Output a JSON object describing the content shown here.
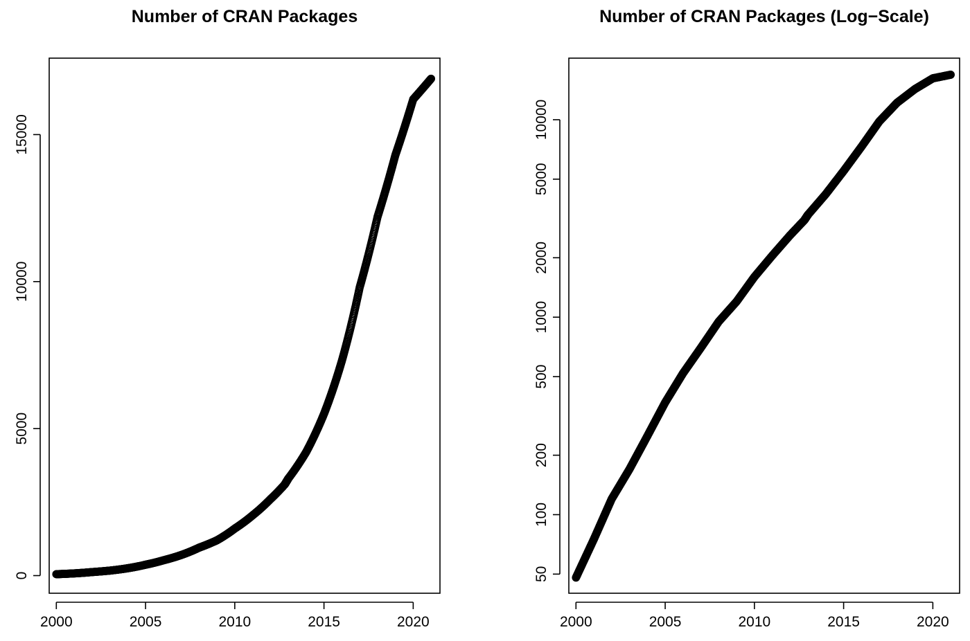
{
  "chart_data": [
    {
      "type": "scatter",
      "title": "Number of CRAN Packages",
      "xlabel": "",
      "ylabel": "",
      "log_y": false,
      "xlim": [
        1999.6,
        2021.5
      ],
      "ylim": [
        -600,
        17600
      ],
      "x_ticks": [
        2000,
        2005,
        2010,
        2015,
        2020
      ],
      "x_tick_labels": [
        "2000",
        "2005",
        "2010",
        "2015",
        "2020"
      ],
      "y_ticks": [
        0,
        5000,
        10000,
        15000
      ],
      "y_tick_labels": [
        "0",
        "5000",
        "10000",
        "15000"
      ],
      "marker": "open-circle",
      "series": [
        {
          "x": [
            2000.0,
            2001.0,
            2002.0,
            2003.0,
            2004.0,
            2005.0,
            2006.0,
            2007.0,
            2008.0,
            2009.0,
            2010.0,
            2011.0,
            2012.0,
            2012.8,
            2013.0,
            2014.0,
            2015.0,
            2016.0,
            2017.0,
            2018.0,
            2019.0,
            2020.0,
            2021.0
          ],
          "y": [
            48,
            75,
            120,
            170,
            250,
            370,
            520,
            700,
            950,
            1200,
            1600,
            2050,
            2600,
            3100,
            3300,
            4200,
            5500,
            7300,
            9800,
            12200,
            14300,
            16200,
            16900
          ]
        }
      ]
    },
    {
      "type": "scatter",
      "title": "Number of CRAN Packages (Log−Scale)",
      "xlabel": "",
      "ylabel": "",
      "log_y": true,
      "xlim": [
        1999.6,
        2021.5
      ],
      "ylim": [
        40,
        20500
      ],
      "x_ticks": [
        2000,
        2005,
        2010,
        2015,
        2020
      ],
      "x_tick_labels": [
        "2000",
        "2005",
        "2010",
        "2015",
        "2020"
      ],
      "y_ticks": [
        50,
        100,
        200,
        500,
        1000,
        2000,
        5000,
        10000
      ],
      "y_tick_labels": [
        "50",
        "100",
        "200",
        "500",
        "1000",
        "2000",
        "5000",
        "10000"
      ],
      "marker": "open-circle",
      "series": [
        {
          "x": [
            2000.0,
            2001.0,
            2002.0,
            2003.0,
            2004.0,
            2005.0,
            2006.0,
            2007.0,
            2008.0,
            2009.0,
            2010.0,
            2011.0,
            2012.0,
            2012.8,
            2013.0,
            2014.0,
            2015.0,
            2016.0,
            2017.0,
            2018.0,
            2019.0,
            2020.0,
            2021.0
          ],
          "y": [
            48,
            75,
            120,
            170,
            250,
            370,
            520,
            700,
            950,
            1200,
            1600,
            2050,
            2600,
            3100,
            3300,
            4200,
            5500,
            7300,
            9800,
            12200,
            14300,
            16200,
            16900
          ]
        }
      ]
    }
  ]
}
